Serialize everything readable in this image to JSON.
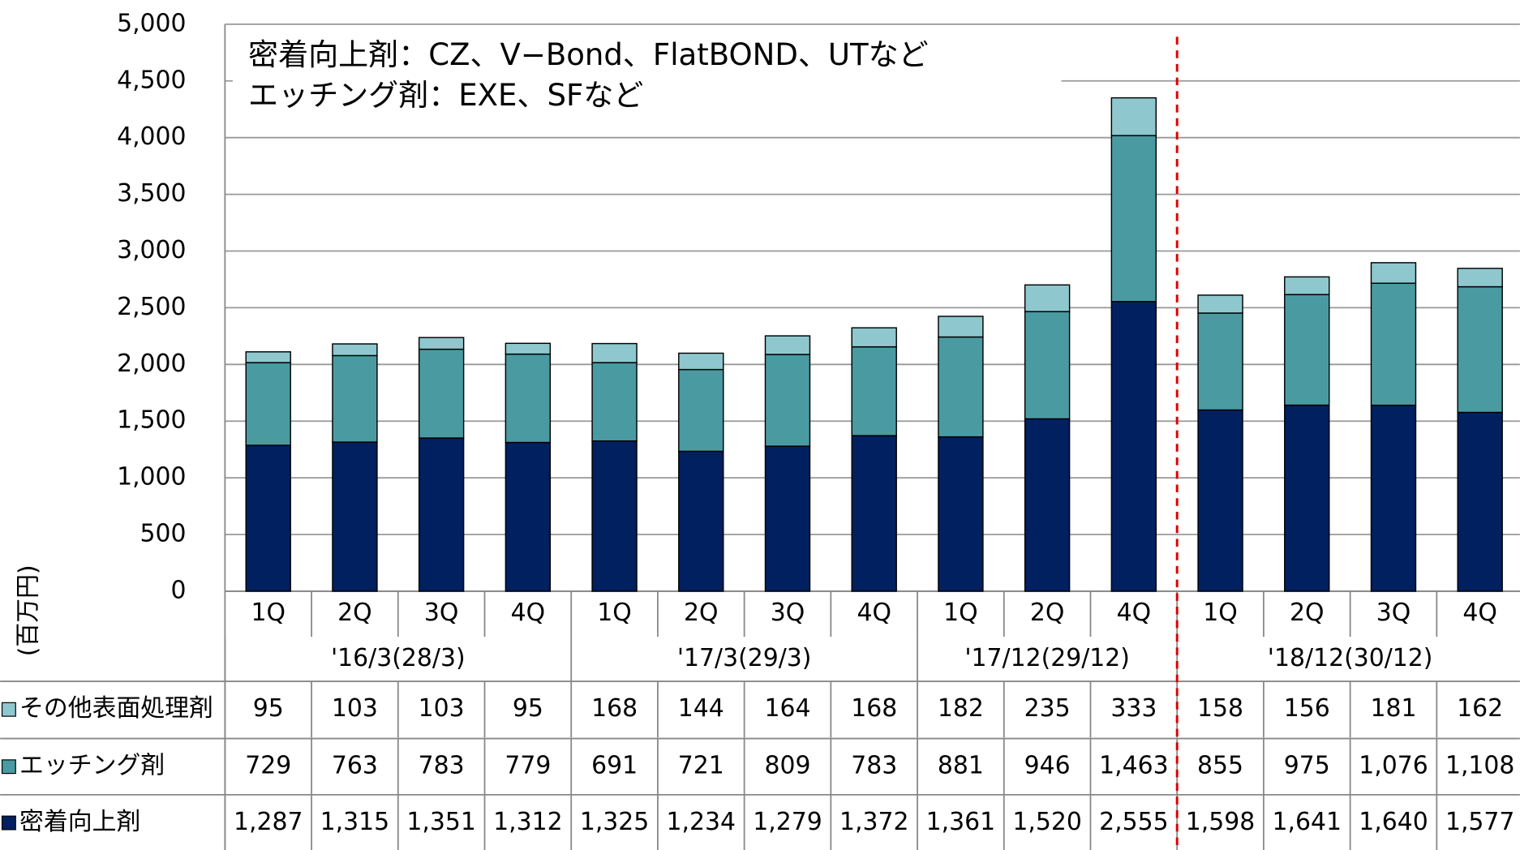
{
  "chart_data": {
    "type": "stacked-bar",
    "y_axis_label": "(百万円)",
    "annotations": [
      "密着向上剤：CZ、V−Bond、FlatBOND、UTなど",
      "エッチング剤：EXE、SFなど"
    ],
    "categories": [
      "1Q",
      "2Q",
      "3Q",
      "4Q",
      "1Q",
      "2Q",
      "3Q",
      "4Q",
      "1Q",
      "2Q",
      "4Q",
      "1Q",
      "2Q",
      "3Q",
      "4Q"
    ],
    "groups": [
      {
        "label": "'16/3(28/3)",
        "span": 4
      },
      {
        "label": "'17/3(29/3)",
        "span": 4
      },
      {
        "label": "'17/12(29/12)",
        "span": 3
      },
      {
        "label": "'18/12(30/12)",
        "span": 4
      }
    ],
    "series": [
      {
        "name": "密着向上剤",
        "color": "#002060",
        "values": [
          1287,
          1315,
          1351,
          1312,
          1325,
          1234,
          1279,
          1372,
          1361,
          1520,
          2555,
          1598,
          1641,
          1640,
          1577
        ],
        "value_labels": [
          "1,287",
          "1,315",
          "1,351",
          "1,312",
          "1,325",
          "1,234",
          "1,279",
          "1,372",
          "1,361",
          "1,520",
          "2,555",
          "1,598",
          "1,641",
          "1,640",
          "1,577"
        ]
      },
      {
        "name": "エッチング剤",
        "color": "#4a9aa1",
        "values": [
          729,
          763,
          783,
          779,
          691,
          721,
          809,
          783,
          881,
          946,
          1463,
          855,
          975,
          1076,
          1108
        ],
        "value_labels": [
          "729",
          "763",
          "783",
          "779",
          "691",
          "721",
          "809",
          "783",
          "881",
          "946",
          "1,463",
          "855",
          "975",
          "1,076",
          "1,108"
        ]
      },
      {
        "name": "その他表面処理剤",
        "color": "#8ec8ce",
        "values": [
          95,
          103,
          103,
          95,
          168,
          144,
          164,
          168,
          182,
          235,
          333,
          158,
          156,
          181,
          162
        ],
        "value_labels": [
          "95",
          "103",
          "103",
          "95",
          "168",
          "144",
          "164",
          "168",
          "182",
          "235",
          "333",
          "158",
          "156",
          "181",
          "162"
        ]
      }
    ],
    "ylim": [
      0,
      5000
    ],
    "yticks": [
      0,
      500,
      {
        "value": 1000,
        "label": "1,000"
      },
      {
        "value": 1500,
        "label": "1,500"
      },
      {
        "value": 2000,
        "label": "2,000"
      },
      {
        "value": 2500,
        "label": "2,500"
      },
      {
        "value": 3000,
        "label": "3,000"
      },
      {
        "value": 3500,
        "label": "3,500"
      },
      {
        "value": 4000,
        "label": "4,000"
      },
      {
        "value": 4500,
        "label": "4,500"
      },
      {
        "value": 5000,
        "label": "5,000"
      }
    ],
    "grid": true
  }
}
